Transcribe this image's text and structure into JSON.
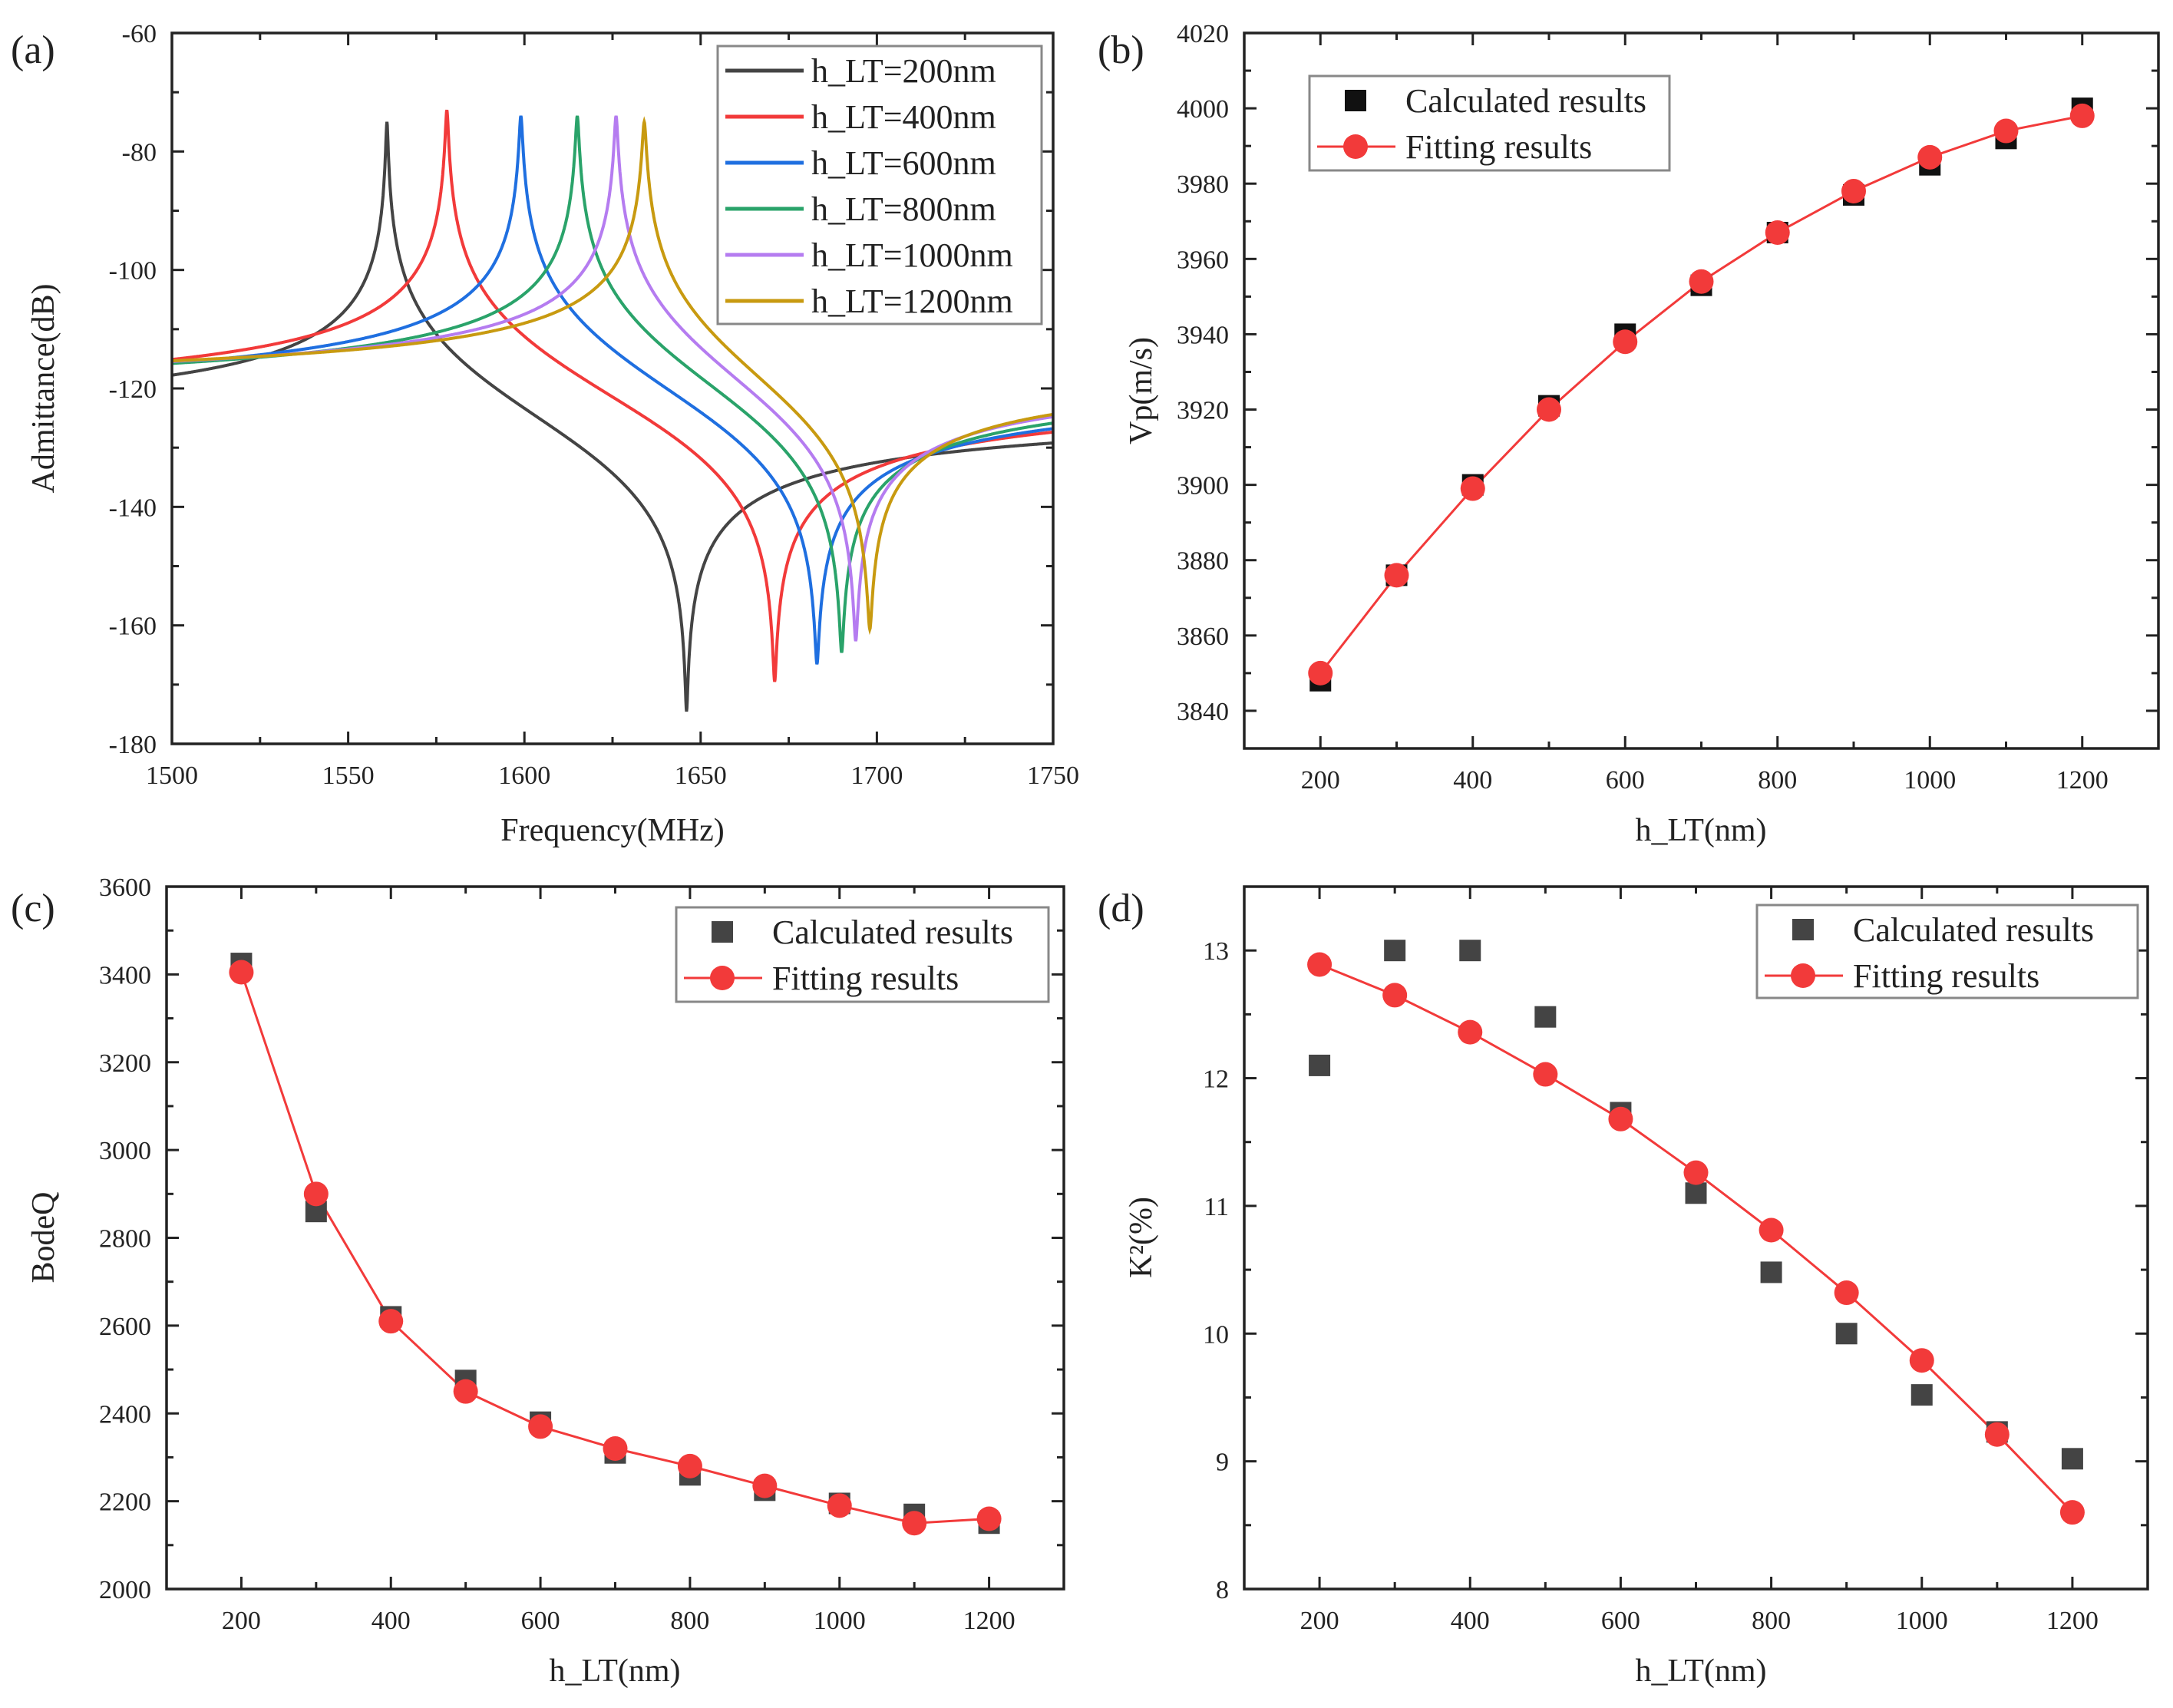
{
  "chart_data": [
    {
      "panel_label": "(a)",
      "type": "line",
      "xlabel": "Frequency(MHz)",
      "ylabel": "Admittance(dB)",
      "xlim": [
        1500,
        1750
      ],
      "ylim": [
        -180,
        -60
      ],
      "xticks": [
        1500,
        1550,
        1600,
        1650,
        1700,
        1750
      ],
      "yticks": [
        -180,
        -160,
        -140,
        -120,
        -100,
        -80,
        -60
      ],
      "legend_position": "top-right",
      "series": [
        {
          "name": "h_LT=200nm",
          "color": "#444444",
          "resonance_MHz": 1561,
          "antiresonance_MHz": 1646,
          "peak_dB": -75,
          "dip_dB": -175
        },
        {
          "name": "h_LT=400nm",
          "color": "#f23a3a",
          "resonance_MHz": 1578,
          "antiresonance_MHz": 1671,
          "peak_dB": -73,
          "dip_dB": -170
        },
        {
          "name": "h_LT=600nm",
          "color": "#1f6fe0",
          "resonance_MHz": 1599,
          "antiresonance_MHz": 1683,
          "peak_dB": -74,
          "dip_dB": -167
        },
        {
          "name": "h_LT=800nm",
          "color": "#2aa36a",
          "resonance_MHz": 1615,
          "antiresonance_MHz": 1690,
          "peak_dB": -74,
          "dip_dB": -165
        },
        {
          "name": "h_LT=1000nm",
          "color": "#b57cf0",
          "resonance_MHz": 1626,
          "antiresonance_MHz": 1694,
          "peak_dB": -74,
          "dip_dB": -163
        },
        {
          "name": "h_LT=1200nm",
          "color": "#c89a10",
          "resonance_MHz": 1634,
          "antiresonance_MHz": 1698,
          "peak_dB": -75,
          "dip_dB": -161
        }
      ]
    },
    {
      "panel_label": "(b)",
      "type": "scatter",
      "xlabel": "h_LT(nm)",
      "ylabel": "Vp(m/s)",
      "xlim": [
        100,
        1300
      ],
      "ylim": [
        3830,
        4020
      ],
      "xticks": [
        200,
        400,
        600,
        800,
        1000,
        1200
      ],
      "yticks": [
        3840,
        3860,
        3880,
        3900,
        3920,
        3940,
        3960,
        3980,
        4000,
        4020
      ],
      "legend_position": "top-left",
      "x": [
        200,
        300,
        400,
        500,
        600,
        700,
        800,
        900,
        1000,
        1100,
        1200
      ],
      "series": [
        {
          "name": "Calculated results",
          "color": "#111111",
          "marker": "square",
          "values": [
            3848,
            3876,
            3900,
            3921,
            3940,
            3953,
            3967,
            3977,
            3985,
            3992,
            4000
          ]
        },
        {
          "name": "Fitting results",
          "color": "#f23a3a",
          "marker": "circle-line",
          "values": [
            3850,
            3876,
            3899,
            3920,
            3938,
            3954,
            3967,
            3978,
            3987,
            3994,
            3998
          ]
        }
      ]
    },
    {
      "panel_label": "(c)",
      "type": "scatter",
      "xlabel": "h_LT(nm)",
      "ylabel": "BodeQ",
      "xlim": [
        100,
        1300
      ],
      "ylim": [
        2000,
        3600
      ],
      "xticks": [
        200,
        400,
        600,
        800,
        1000,
        1200
      ],
      "yticks": [
        2000,
        2200,
        2400,
        2600,
        2800,
        3000,
        3200,
        3400,
        3600
      ],
      "legend_position": "top-right",
      "x": [
        200,
        300,
        400,
        500,
        600,
        700,
        800,
        900,
        1000,
        1100,
        1200
      ],
      "series": [
        {
          "name": "Calculated results",
          "color": "#444444",
          "marker": "square",
          "values": [
            3425,
            2860,
            2620,
            2475,
            2380,
            2310,
            2260,
            2225,
            2195,
            2170,
            2150
          ]
        },
        {
          "name": "Fitting results",
          "color": "#f23a3a",
          "marker": "circle-line",
          "values": [
            3405,
            2900,
            2610,
            2450,
            2370,
            2320,
            2280,
            2235,
            2190,
            2150,
            2160
          ]
        }
      ]
    },
    {
      "panel_label": "(d)",
      "type": "scatter",
      "xlabel": "h_LT(nm)",
      "ylabel": "K²(%)",
      "xlim": [
        100,
        1300
      ],
      "ylim": [
        8,
        13.5
      ],
      "xticks": [
        200,
        400,
        600,
        800,
        1000,
        1200
      ],
      "yticks": [
        8,
        9,
        10,
        11,
        12,
        13
      ],
      "legend_position": "top-right",
      "x": [
        200,
        300,
        400,
        500,
        600,
        700,
        800,
        900,
        1000,
        1100,
        1200
      ],
      "series": [
        {
          "name": "Calculated results",
          "color": "#444444",
          "marker": "square",
          "values": [
            12.1,
            13.0,
            13.0,
            12.48,
            11.73,
            11.1,
            10.48,
            10.0,
            9.52,
            9.23,
            9.02
          ]
        },
        {
          "name": "Fitting results",
          "color": "#f23a3a",
          "marker": "circle-line",
          "values": [
            12.89,
            12.65,
            12.36,
            12.03,
            11.68,
            11.26,
            10.81,
            10.32,
            9.79,
            9.21,
            8.6
          ]
        }
      ]
    }
  ]
}
